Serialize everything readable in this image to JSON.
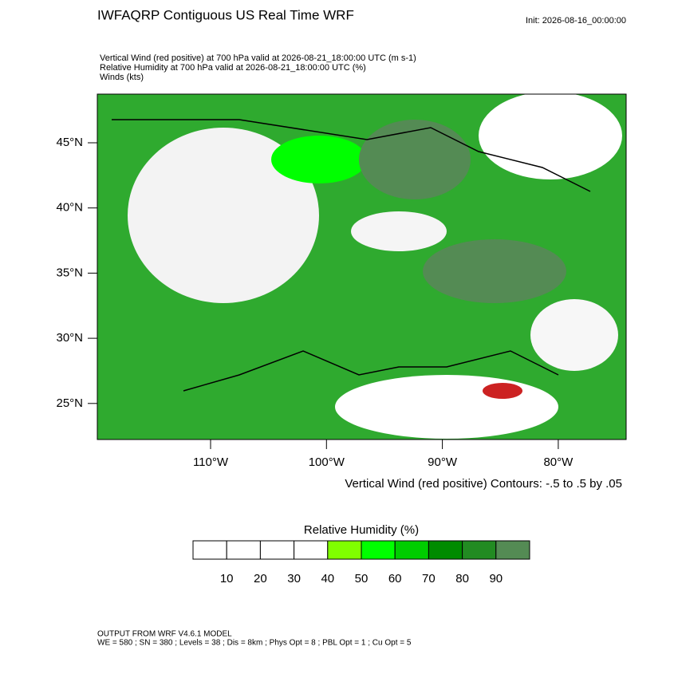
{
  "header": {
    "title": "IWFAQRP Contiguous US Real Time WRF",
    "init": "Init: 2026-08-16_00:00:00",
    "fields": [
      "Vertical Wind (red positive) at 700 hPa valid at 2026-08-21_18:00:00 UTC   (m s-1)",
      "Relative Humidity at 700 hPa valid at 2026-08-21_18:00:00 UTC   (%)",
      "Winds   (kts)"
    ]
  },
  "map": {
    "lat_labels": [
      "45°N",
      "40°N",
      "35°N",
      "30°N",
      "25°N"
    ],
    "lon_labels": [
      "110°W",
      "100°W",
      "90°W",
      "80°W"
    ],
    "contour_note": "Vertical Wind (red positive) Contours: -.5 to .5 by .05"
  },
  "colorbar": {
    "title": "Relative Humidity  (%)",
    "colors": [
      "#ffffff",
      "#ffffff",
      "#ffffff",
      "#ffffff",
      "#80ff00",
      "#00ff00",
      "#00cd00",
      "#008b00",
      "#228b22",
      "#548b54"
    ],
    "ticks": [
      10,
      20,
      30,
      40,
      50,
      60,
      70,
      80,
      90
    ]
  },
  "footer": [
    "OUTPUT FROM WRF V4.6.1 MODEL",
    "WE = 580 ; SN = 380 ; Levels = 38 ; Dis = 8km ; Phys Opt = 8 ; PBL Opt = 1 ; Cu Opt = 5"
  ]
}
